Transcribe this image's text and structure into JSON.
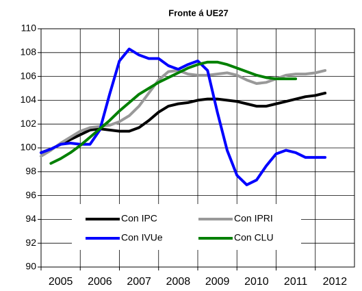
{
  "chart_data": {
    "type": "line",
    "title": "Fronte á  UE27",
    "x": [
      2005,
      2005.25,
      2005.5,
      2005.75,
      2006,
      2006.25,
      2006.5,
      2006.75,
      2007,
      2007.25,
      2007.5,
      2007.75,
      2008,
      2008.25,
      2008.5,
      2008.75,
      2009,
      2009.25,
      2009.5,
      2009.75,
      2010,
      2010.25,
      2010.5,
      2010.75,
      2011,
      2011.25,
      2011.5,
      2011.75,
      2012,
      2012.25
    ],
    "series": [
      {
        "name": "Con IPC",
        "color": "#000000",
        "values": [
          99.6,
          99.9,
          100.3,
          100.7,
          101.1,
          101.5,
          101.6,
          101.5,
          101.4,
          101.4,
          101.7,
          102.3,
          103.0,
          103.5,
          103.7,
          103.8,
          104.0,
          104.1,
          104.1,
          104.0,
          103.9,
          103.7,
          103.5,
          103.5,
          103.7,
          103.9,
          104.1,
          104.3,
          104.4,
          104.6
        ]
      },
      {
        "name": "Con IPRI",
        "color": "#999999",
        "values": [
          99.3,
          99.8,
          100.4,
          100.9,
          101.4,
          101.7,
          101.8,
          101.9,
          102.2,
          102.7,
          103.5,
          104.6,
          105.7,
          106.4,
          106.5,
          106.2,
          106.1,
          106.1,
          106.2,
          106.3,
          106.1,
          105.7,
          105.4,
          105.5,
          105.8,
          106.1,
          106.2,
          106.2,
          106.3,
          106.5
        ]
      },
      {
        "name": "Con IVUe",
        "color": "#0000ff",
        "values": [
          99.6,
          99.9,
          100.3,
          100.4,
          100.3,
          100.3,
          101.5,
          104.5,
          107.3,
          108.3,
          107.8,
          107.5,
          107.5,
          106.9,
          106.6,
          107.0,
          107.3,
          106.5,
          103.0,
          99.8,
          97.7,
          96.9,
          97.3,
          98.5,
          99.5,
          99.8,
          99.6,
          99.2,
          99.2,
          99.2
        ]
      },
      {
        "name": "Con CLU",
        "color": "#008000",
        "values": [
          null,
          98.7,
          99.1,
          99.6,
          100.2,
          100.9,
          101.6,
          102.3,
          103.1,
          103.8,
          104.5,
          105.0,
          105.5,
          105.9,
          106.3,
          106.7,
          107.0,
          107.2,
          107.2,
          107.0,
          106.7,
          106.4,
          106.1,
          105.9,
          105.8,
          105.8,
          105.8,
          null,
          null,
          null
        ]
      }
    ],
    "xlim": [
      2005,
      2013
    ],
    "xticks": [
      2005,
      2006,
      2007,
      2008,
      2009,
      2010,
      2011,
      2012
    ],
    "ylim": [
      90,
      110
    ],
    "yticks": [
      90,
      92,
      94,
      96,
      98,
      100,
      102,
      104,
      106,
      108,
      110
    ],
    "grid": true,
    "legend": "bottom"
  }
}
